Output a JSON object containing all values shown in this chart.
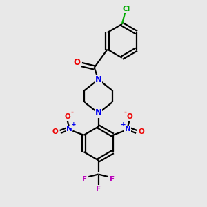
{
  "bg_color": "#e8e8e8",
  "bond_color": "#000000",
  "N_color": "#0000ee",
  "O_color": "#ee0000",
  "F_color": "#bb00bb",
  "Cl_color": "#00aa00",
  "figsize": [
    3.0,
    3.0
  ],
  "dpi": 100,
  "xlim": [
    0,
    10
  ],
  "ylim": [
    0,
    10
  ]
}
